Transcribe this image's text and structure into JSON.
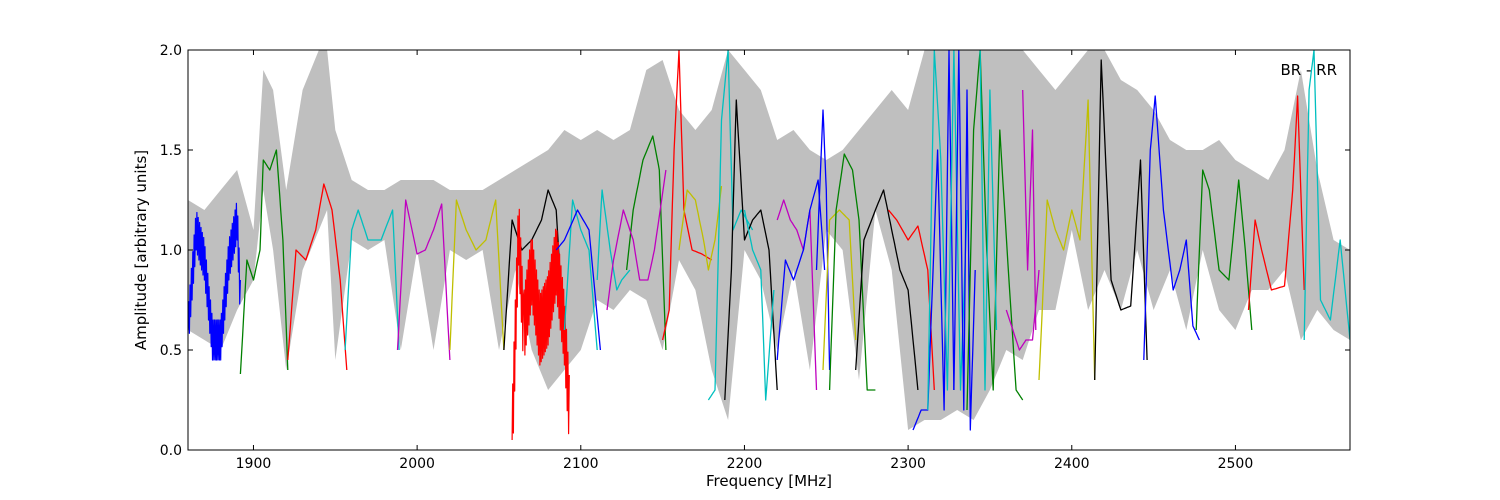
{
  "chart_data": {
    "type": "line",
    "annotation": "BR - RR",
    "xlabel": "Frequency [MHz]",
    "ylabel": "Amplitude [arbitrary units]",
    "xlim": [
      1860,
      2570
    ],
    "ylim": [
      0.0,
      2.0
    ],
    "x_ticks": [
      1900,
      2000,
      2100,
      2200,
      2300,
      2400,
      2500
    ],
    "x_tick_labels": [
      "1900",
      "2000",
      "2100",
      "2200",
      "2300",
      "2400",
      "2500"
    ],
    "y_ticks": [
      0.0,
      0.5,
      1.0,
      1.5,
      2.0
    ],
    "y_tick_labels": [
      "0.0",
      "0.5",
      "1.0",
      "1.5",
      "2.0"
    ],
    "grid": false,
    "colors": {
      "envelope": "#bfbfbf",
      "blue": "#0000ff",
      "green": "#008000",
      "red": "#ff0000",
      "cyan": "#00bfbf",
      "magenta": "#bf00bf",
      "yellow": "#bfbf00",
      "black": "#000000"
    },
    "envelope": {
      "x": [
        1860,
        1870,
        1880,
        1890,
        1900,
        1906,
        1912,
        1920,
        1930,
        1940,
        1945,
        1950,
        1960,
        1970,
        1980,
        1990,
        2000,
        2010,
        2020,
        2030,
        2040,
        2050,
        2060,
        2070,
        2080,
        2090,
        2100,
        2110,
        2120,
        2130,
        2140,
        2150,
        2160,
        2170,
        2180,
        2190,
        2200,
        2210,
        2220,
        2230,
        2240,
        2250,
        2260,
        2270,
        2280,
        2290,
        2300,
        2310,
        2320,
        2330,
        2340,
        2350,
        2360,
        2370,
        2380,
        2390,
        2400,
        2410,
        2420,
        2430,
        2440,
        2450,
        2460,
        2470,
        2480,
        2490,
        2500,
        2510,
        2520,
        2530,
        2540,
        2550,
        2560,
        2570
      ],
      "upper": [
        1.25,
        1.2,
        1.3,
        1.4,
        1.1,
        1.9,
        1.8,
        1.3,
        1.8,
        2.0,
        2.0,
        1.6,
        1.35,
        1.3,
        1.3,
        1.35,
        1.35,
        1.35,
        1.3,
        1.3,
        1.3,
        1.35,
        1.4,
        1.45,
        1.5,
        1.6,
        1.55,
        1.6,
        1.55,
        1.6,
        1.9,
        1.95,
        1.7,
        1.6,
        1.7,
        2.0,
        1.9,
        1.8,
        1.55,
        1.6,
        1.5,
        1.45,
        1.5,
        1.6,
        1.7,
        1.8,
        1.7,
        2.0,
        2.0,
        2.0,
        2.0,
        2.0,
        2.0,
        2.0,
        1.9,
        1.8,
        1.9,
        2.0,
        2.0,
        1.85,
        1.8,
        1.7,
        1.55,
        1.5,
        1.5,
        1.55,
        1.45,
        1.4,
        1.35,
        1.5,
        1.9,
        1.4,
        1.05,
        1.0
      ],
      "lower": [
        0.6,
        0.55,
        0.5,
        0.7,
        0.85,
        1.3,
        1.0,
        0.4,
        0.9,
        1.1,
        1.2,
        0.45,
        1.05,
        1.0,
        1.05,
        0.5,
        1.0,
        0.5,
        1.0,
        0.95,
        1.0,
        0.5,
        0.9,
        0.5,
        0.3,
        0.4,
        0.5,
        0.75,
        0.7,
        0.8,
        0.75,
        0.5,
        0.95,
        0.8,
        0.4,
        0.15,
        1.0,
        0.85,
        0.5,
        0.9,
        0.4,
        1.1,
        1.0,
        0.35,
        1.2,
        0.9,
        0.1,
        0.15,
        0.15,
        0.2,
        0.15,
        0.3,
        0.5,
        0.45,
        0.7,
        0.7,
        1.1,
        0.7,
        0.9,
        0.7,
        1.0,
        0.7,
        0.9,
        0.6,
        1.0,
        0.7,
        0.6,
        0.8,
        0.8,
        0.9,
        0.55,
        0.7,
        0.6,
        0.55
      ]
    },
    "series": [
      {
        "color": "#0000ff",
        "x": [
          1860,
          1865,
          1870,
          1875,
          1880,
          1885,
          1890,
          1892
        ],
        "y": [
          0.6,
          1.1,
          0.95,
          0.55,
          0.55,
          0.95,
          1.15,
          0.75
        ],
        "noise": 0.2
      },
      {
        "color": "#008000",
        "x": [
          1892,
          1896,
          1900,
          1904,
          1906,
          1910,
          1914,
          1918,
          1921
        ],
        "y": [
          0.38,
          0.95,
          0.85,
          1.0,
          1.45,
          1.4,
          1.5,
          1.05,
          0.4
        ]
      },
      {
        "color": "#ff0000",
        "x": [
          1921,
          1926,
          1932,
          1938,
          1943,
          1948,
          1953,
          1957
        ],
        "y": [
          0.45,
          1.0,
          0.95,
          1.1,
          1.33,
          1.2,
          0.85,
          0.4
        ]
      },
      {
        "color": "#00bfbf",
        "x": [
          1956,
          1960,
          1964,
          1970,
          1978,
          1985,
          1989
        ],
        "y": [
          0.5,
          1.1,
          1.2,
          1.05,
          1.05,
          1.2,
          0.5
        ]
      },
      {
        "color": "#bf00bf",
        "x": [
          1988,
          1993,
          2000,
          2005,
          2010,
          2015,
          2020
        ],
        "y": [
          0.5,
          1.25,
          0.98,
          1.0,
          1.1,
          1.23,
          0.45
        ]
      },
      {
        "color": "#bfbf00",
        "x": [
          2020,
          2024,
          2030,
          2036,
          2042,
          2048,
          2053
        ],
        "y": [
          0.5,
          1.25,
          1.1,
          1.0,
          1.05,
          1.25,
          0.5
        ]
      },
      {
        "color": "#000000",
        "x": [
          2053,
          2058,
          2064,
          2070,
          2076,
          2080,
          2085,
          2090
        ],
        "y": [
          0.5,
          1.15,
          1.0,
          1.05,
          1.15,
          1.3,
          1.2,
          0.5
        ]
      },
      {
        "color": "#ff0000",
        "x": [
          2058,
          2062,
          2065,
          2070,
          2075,
          2080,
          2085,
          2090,
          2093
        ],
        "y": [
          0.05,
          1.1,
          0.6,
          0.9,
          0.6,
          0.7,
          0.95,
          0.6,
          0.2
        ],
        "noise": 0.35
      },
      {
        "color": "#00bfbf",
        "x": [
          2090,
          2095,
          2100,
          2105,
          2110
        ],
        "y": [
          0.6,
          1.25,
          1.1,
          1.0,
          0.5
        ]
      },
      {
        "color": "#0000ff",
        "x": [
          2085,
          2090,
          2098,
          2105,
          2112
        ],
        "y": [
          1.0,
          1.05,
          1.2,
          1.1,
          0.5
        ]
      },
      {
        "color": "#00bfbf",
        "x": [
          2110,
          2113,
          2118,
          2122,
          2125,
          2130
        ],
        "y": [
          0.85,
          1.3,
          1.0,
          0.8,
          0.85,
          0.9
        ]
      },
      {
        "color": "#008000",
        "x": [
          2128,
          2132,
          2138,
          2144,
          2148,
          2152
        ],
        "y": [
          0.9,
          1.2,
          1.45,
          1.57,
          1.4,
          0.5
        ]
      },
      {
        "color": "#bf00bf",
        "x": [
          2116,
          2120,
          2126,
          2132,
          2136,
          2141,
          2145,
          2152
        ],
        "y": [
          0.7,
          0.95,
          1.2,
          1.05,
          0.85,
          0.85,
          1.0,
          1.4
        ]
      },
      {
        "color": "#ff0000",
        "x": [
          2150,
          2154,
          2157,
          2160,
          2163,
          2168,
          2174,
          2180
        ],
        "y": [
          0.55,
          0.7,
          1.5,
          2.0,
          1.2,
          1.0,
          0.98,
          0.95
        ]
      },
      {
        "color": "#bfbf00",
        "x": [
          2160,
          2165,
          2170,
          2175,
          2178,
          2182,
          2186
        ],
        "y": [
          1.0,
          1.3,
          1.25,
          1.05,
          0.9,
          1.05,
          1.32
        ]
      },
      {
        "color": "#00bfbf",
        "x": [
          2178,
          2182,
          2186,
          2190,
          2193,
          2198,
          2205
        ],
        "y": [
          0.25,
          0.3,
          1.65,
          2.0,
          1.1,
          1.2,
          1.1
        ]
      },
      {
        "color": "#000000",
        "x": [
          2188,
          2192,
          2195,
          2200,
          2205,
          2210,
          2215,
          2220
        ],
        "y": [
          0.25,
          0.9,
          1.75,
          1.05,
          1.15,
          1.2,
          1.0,
          0.3
        ]
      },
      {
        "color": "#00bfbf",
        "x": [
          2200,
          2205,
          2210,
          2213,
          2218
        ],
        "y": [
          1.2,
          1.0,
          0.9,
          0.25,
          0.8
        ]
      },
      {
        "color": "#bf00bf",
        "x": [
          2220,
          2224,
          2228,
          2232,
          2236,
          2240,
          2244
        ],
        "y": [
          1.15,
          1.25,
          1.15,
          1.1,
          1.0,
          1.2,
          0.3
        ]
      },
      {
        "color": "#0000ff",
        "x": [
          2220,
          2225,
          2230,
          2236,
          2240,
          2245,
          2249
        ],
        "y": [
          0.45,
          0.95,
          0.85,
          1.0,
          1.2,
          1.35,
          0.9
        ]
      },
      {
        "color": "#0000ff",
        "x": [
          2244,
          2248,
          2250,
          2252
        ],
        "y": [
          0.9,
          1.7,
          1.3,
          0.4
        ]
      },
      {
        "color": "#bfbf00",
        "x": [
          2248,
          2252,
          2258,
          2264,
          2268
        ],
        "y": [
          0.4,
          1.15,
          1.2,
          1.15,
          0.55
        ]
      },
      {
        "color": "#008000",
        "x": [
          2252,
          2256,
          2261,
          2266,
          2270,
          2275,
          2280
        ],
        "y": [
          0.3,
          1.2,
          1.48,
          1.4,
          1.15,
          0.3,
          0.3
        ]
      },
      {
        "color": "#000000",
        "x": [
          2268,
          2273,
          2280,
          2285,
          2290,
          2295,
          2300,
          2306
        ],
        "y": [
          0.4,
          1.05,
          1.2,
          1.3,
          1.1,
          0.9,
          0.8,
          0.3
        ]
      },
      {
        "color": "#ff0000",
        "x": [
          2288,
          2293,
          2300,
          2306,
          2312,
          2316
        ],
        "y": [
          1.2,
          1.15,
          1.05,
          1.12,
          0.9,
          0.3
        ]
      },
      {
        "color": "#0000ff",
        "x": [
          2303,
          2308,
          2312,
          2318,
          2322,
          2325,
          2328
        ],
        "y": [
          0.1,
          0.2,
          0.2,
          1.5,
          0.2,
          2.0,
          0.3
        ]
      },
      {
        "color": "#00bfbf",
        "x": [
          2312,
          2316,
          2320,
          2324,
          2328,
          2332,
          2336
        ],
        "y": [
          0.2,
          2.0,
          1.45,
          0.3,
          2.0,
          0.3,
          1.2
        ]
      },
      {
        "color": "#0000ff",
        "x": [
          2328,
          2331,
          2334,
          2336,
          2338,
          2341
        ],
        "y": [
          0.3,
          2.0,
          0.2,
          1.8,
          0.1,
          0.9
        ]
      },
      {
        "color": "#008000",
        "x": [
          2336,
          2340,
          2344,
          2348,
          2352,
          2356,
          2362,
          2366,
          2370
        ],
        "y": [
          0.2,
          1.6,
          2.0,
          1.0,
          0.3,
          1.6,
          0.8,
          0.3,
          0.25
        ]
      },
      {
        "color": "#00bfbf",
        "x": [
          2344,
          2347,
          2350,
          2354
        ],
        "y": [
          2.0,
          0.3,
          1.8,
          0.6
        ]
      },
      {
        "color": "#bf00bf",
        "x": [
          2360,
          2364,
          2368,
          2372,
          2376,
          2380
        ],
        "y": [
          0.7,
          0.6,
          0.5,
          0.55,
          0.55,
          0.9
        ]
      },
      {
        "color": "#bf00bf",
        "x": [
          2370,
          2373,
          2376,
          2378
        ],
        "y": [
          1.8,
          0.9,
          1.6,
          0.6
        ]
      },
      {
        "color": "#bfbf00",
        "x": [
          2380,
          2385,
          2390,
          2395,
          2400,
          2405,
          2410,
          2414
        ],
        "y": [
          0.35,
          1.25,
          1.1,
          1.0,
          1.2,
          1.05,
          1.75,
          0.35
        ]
      },
      {
        "color": "#000000",
        "x": [
          2414,
          2418,
          2424,
          2430,
          2436,
          2440,
          2442,
          2446
        ],
        "y": [
          0.35,
          1.95,
          0.85,
          0.7,
          0.72,
          1.2,
          1.45,
          0.45
        ]
      },
      {
        "color": "#0000ff",
        "x": [
          2444,
          2448,
          2451,
          2456,
          2462,
          2466,
          2470,
          2474,
          2478
        ],
        "y": [
          0.45,
          1.5,
          1.77,
          1.2,
          0.8,
          0.9,
          1.05,
          0.62,
          0.55
        ]
      },
      {
        "color": "#008000",
        "x": [
          2476,
          2480,
          2484,
          2490,
          2496,
          2502,
          2506,
          2510
        ],
        "y": [
          0.6,
          1.4,
          1.3,
          0.9,
          0.85,
          1.35,
          1.0,
          0.6
        ]
      },
      {
        "color": "#ff0000",
        "x": [
          2508,
          2512,
          2516,
          2522,
          2530,
          2535,
          2538,
          2542
        ],
        "y": [
          0.7,
          1.15,
          1.0,
          0.8,
          0.82,
          1.3,
          1.77,
          0.8
        ]
      },
      {
        "color": "#00bfbf",
        "x": [
          2542,
          2545,
          2548,
          2552,
          2558,
          2564,
          2570
        ],
        "y": [
          0.55,
          1.8,
          2.0,
          0.75,
          0.65,
          1.05,
          0.55
        ]
      }
    ]
  }
}
